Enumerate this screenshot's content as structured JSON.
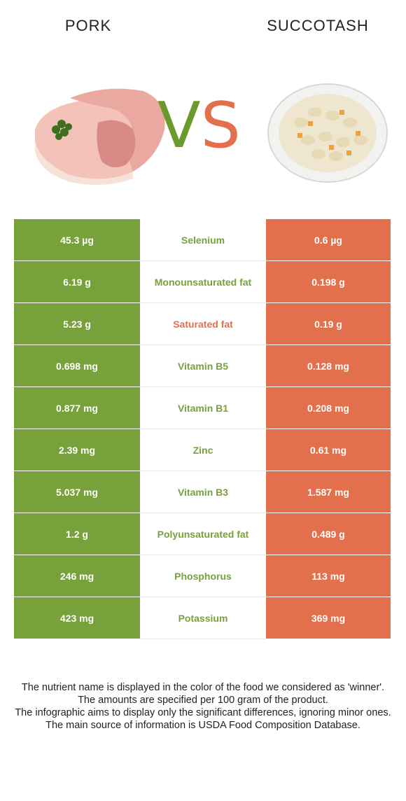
{
  "header": {
    "left_title": "PORK",
    "right_title": "SUCCOTASH",
    "vs_v": "V",
    "vs_s": "S"
  },
  "images": {
    "left_icon": "pork-chop-image",
    "right_icon": "succotash-plate-image"
  },
  "colors": {
    "pork": "#77a13b",
    "succotash": "#e2704c"
  },
  "rows": [
    {
      "left": "45.3 µg",
      "nutrient": "Selenium",
      "winner": "green",
      "right": "0.6 µg"
    },
    {
      "left": "6.19 g",
      "nutrient": "Monounsaturated fat",
      "winner": "green",
      "right": "0.198 g"
    },
    {
      "left": "5.23 g",
      "nutrient": "Saturated fat",
      "winner": "red",
      "right": "0.19 g"
    },
    {
      "left": "0.698 mg",
      "nutrient": "Vitamin B5",
      "winner": "green",
      "right": "0.128 mg"
    },
    {
      "left": "0.877 mg",
      "nutrient": "Vitamin B1",
      "winner": "green",
      "right": "0.208 mg"
    },
    {
      "left": "2.39 mg",
      "nutrient": "Zinc",
      "winner": "green",
      "right": "0.61 mg"
    },
    {
      "left": "5.037 mg",
      "nutrient": "Vitamin B3",
      "winner": "green",
      "right": "1.587 mg"
    },
    {
      "left": "1.2 g",
      "nutrient": "Polyunsaturated fat",
      "winner": "green",
      "right": "0.489 g"
    },
    {
      "left": "246 mg",
      "nutrient": "Phosphorus",
      "winner": "green",
      "right": "113 mg"
    },
    {
      "left": "423 mg",
      "nutrient": "Potassium",
      "winner": "green",
      "right": "369 mg"
    }
  ],
  "footer": {
    "line1": "The nutrient name is displayed in the color of the food we considered as 'winner'.",
    "line2": "The amounts are specified per 100 gram of the product.",
    "line3": "The infographic aims to display only the significant differences, ignoring minor ones.",
    "line4": "The main source of information is USDA Food Composition Database."
  }
}
